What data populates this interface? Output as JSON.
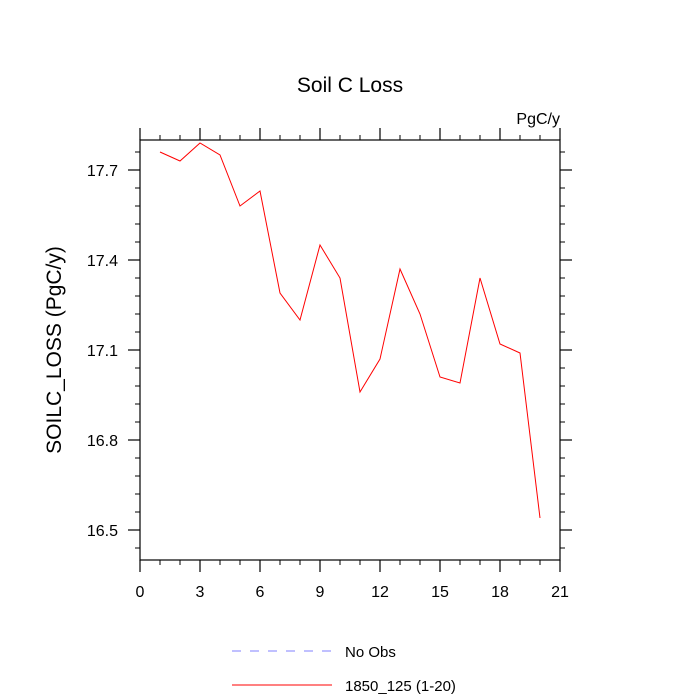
{
  "chart_data": {
    "type": "line",
    "title": "Soil C Loss",
    "units": "PgC/y",
    "ylabel": "SOILC_LOSS  (PgC/y)",
    "xlabel": "",
    "xlim": [
      0,
      21
    ],
    "ylim": [
      16.4,
      17.8
    ],
    "xticks": [
      0,
      3,
      6,
      9,
      12,
      15,
      18,
      21
    ],
    "yticks": [
      16.5,
      16.8,
      17.1,
      17.4,
      17.7
    ],
    "grid": false,
    "legend_position": "bottom-center",
    "series": [
      {
        "name": "1850_125 (1-20)",
        "color": "#ff0000",
        "style": "solid",
        "x": [
          1,
          2,
          3,
          4,
          5,
          6,
          7,
          8,
          9,
          10,
          11,
          12,
          13,
          14,
          15,
          16,
          17,
          18,
          19,
          20
        ],
        "y": [
          17.76,
          17.73,
          17.79,
          17.75,
          17.58,
          17.63,
          17.29,
          17.2,
          17.45,
          17.34,
          16.96,
          17.07,
          17.37,
          17.22,
          17.01,
          16.99,
          17.34,
          17.12,
          17.09,
          16.54
        ]
      }
    ],
    "legend": [
      {
        "label": "No Obs",
        "color": "#8080ff",
        "style": "dashed"
      },
      {
        "label": "1850_125 (1-20)",
        "color": "#ff0000",
        "style": "solid"
      }
    ]
  }
}
